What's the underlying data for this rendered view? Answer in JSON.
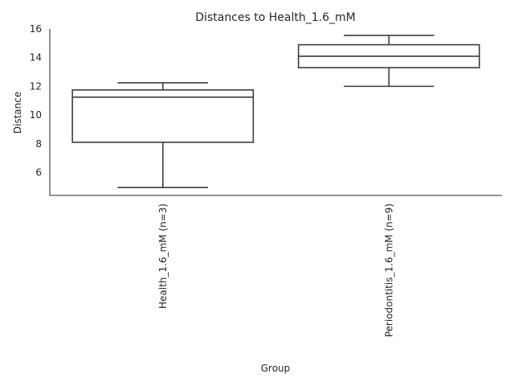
{
  "chart_data": {
    "type": "box",
    "title": "Distances to Health_1.6_mM",
    "xlabel": "Group",
    "ylabel": "Distance",
    "ylim": [
      4.4,
      16.0
    ],
    "yticks": [
      6,
      8,
      10,
      12,
      14,
      16
    ],
    "grid": false,
    "legend": "none",
    "categories": [
      "Health_1.6_mM (n=3)",
      "Periodontitis_1.6_mM (n=9)"
    ],
    "boxes": [
      {
        "category": "Health_1.6_mM (n=3)",
        "whisker_low": 4.95,
        "q1": 8.1,
        "median": 11.25,
        "q3": 11.75,
        "whisker_high": 12.25
      },
      {
        "category": "Periodontitis_1.6_mM (n=9)",
        "whisker_low": 12.0,
        "q1": 13.3,
        "median": 14.1,
        "q3": 14.9,
        "whisker_high": 15.55
      }
    ],
    "colors": {
      "box_edge": "#3d3d3d",
      "box_fill": "#ffffff",
      "axis": "#262626"
    }
  }
}
